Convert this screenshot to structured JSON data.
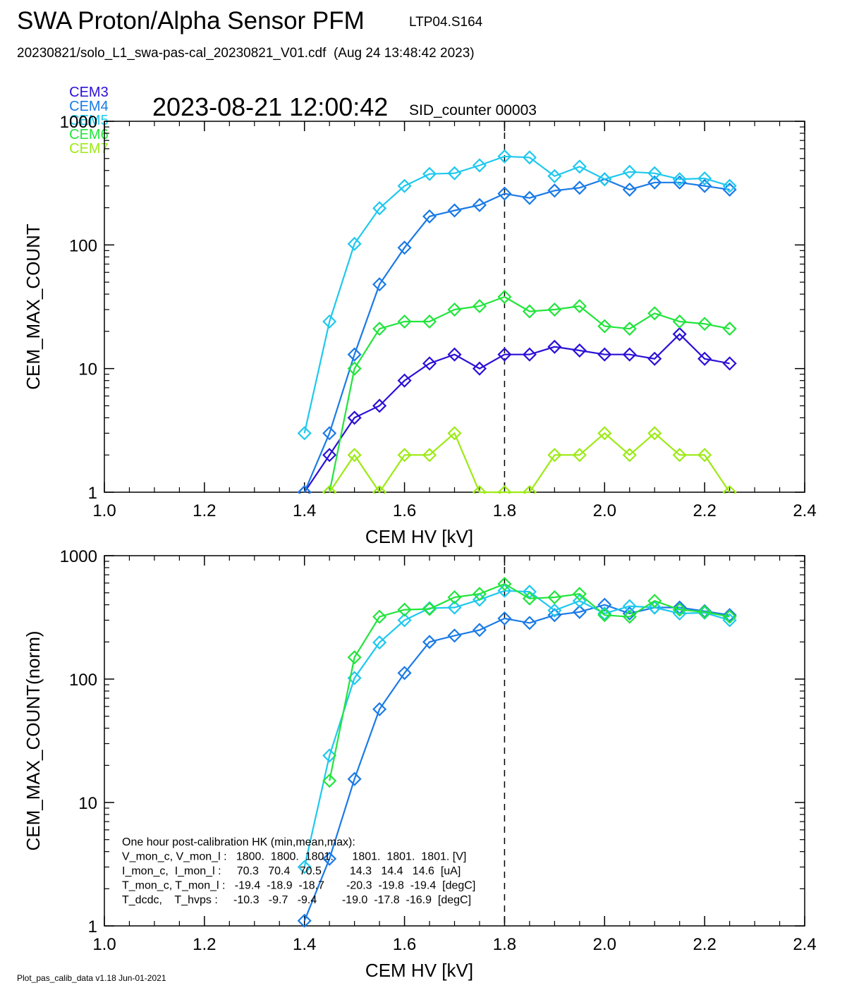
{
  "header": {
    "title": "SWA Proton/Alpha Sensor PFM",
    "tag": "LTP04.S164",
    "subtitle": "20230821/solo_L1_swa-pas-cal_20230821_V01.cdf  (Aug 24 13:48:42 2023)",
    "timestamp": "2023-08-21 12:00:42",
    "sid": "SID_counter 00003"
  },
  "legend": [
    {
      "label": "CEM3",
      "color": "#2a10d6"
    },
    {
      "label": "CEM4",
      "color": "#1a7ae6"
    },
    {
      "label": "CEM5",
      "color": "#1ec8ee"
    },
    {
      "label": "CEM6",
      "color": "#22e43c"
    },
    {
      "label": "CEM7",
      "color": "#9cea14"
    }
  ],
  "footer": "Plot_pas_calib_data v1.18 Jun-01-2021",
  "chart_data": [
    {
      "type": "line",
      "xlabel": "CEM HV [kV]",
      "ylabel": "CEM_MAX_COUNT",
      "xlim": [
        1.0,
        2.4
      ],
      "ylim": [
        1,
        1000
      ],
      "yscale": "log",
      "xticks": [
        "1.0",
        "1.2",
        "1.4",
        "1.6",
        "1.8",
        "2.0",
        "2.2",
        "2.4"
      ],
      "yticks": [
        "1",
        "10",
        "100",
        "1000"
      ],
      "vline_x": 1.8,
      "x": [
        1.4,
        1.45,
        1.5,
        1.55,
        1.6,
        1.65,
        1.7,
        1.75,
        1.8,
        1.85,
        1.9,
        1.95,
        2.0,
        2.05,
        2.1,
        2.15,
        2.2,
        2.25
      ],
      "series": [
        {
          "name": "CEM3",
          "color": "#2a10d6",
          "values": [
            1,
            2,
            4,
            5,
            8,
            11,
            13,
            10,
            13,
            13,
            15,
            14,
            13,
            13,
            12,
            19,
            12,
            11
          ]
        },
        {
          "name": "CEM4",
          "color": "#1a7ae6",
          "values": [
            1,
            3,
            13,
            48,
            95,
            170,
            190,
            210,
            260,
            240,
            275,
            290,
            340,
            280,
            320,
            320,
            300,
            280
          ]
        },
        {
          "name": "CEM5",
          "color": "#1ec8ee",
          "values": [
            3,
            24,
            102,
            198,
            300,
            375,
            380,
            440,
            520,
            510,
            360,
            430,
            340,
            390,
            380,
            340,
            345,
            300
          ]
        },
        {
          "name": "CEM6",
          "color": "#22e43c",
          "values": [
            null,
            1,
            10,
            21,
            24,
            24,
            30,
            32,
            38,
            29,
            30,
            32,
            22,
            21,
            28,
            24,
            23,
            21
          ]
        },
        {
          "name": "CEM7",
          "color": "#9cea14",
          "values": [
            null,
            1,
            2,
            1,
            2,
            2,
            3,
            1,
            1,
            1,
            2,
            2,
            3,
            2,
            3,
            2,
            2,
            1
          ]
        }
      ]
    },
    {
      "type": "line",
      "xlabel": "CEM HV [kV]",
      "ylabel": "CEM_MAX_COUNT(norm)",
      "xlim": [
        1.0,
        2.4
      ],
      "ylim": [
        1,
        1000
      ],
      "yscale": "log",
      "xticks": [
        "1.0",
        "1.2",
        "1.4",
        "1.6",
        "1.8",
        "2.0",
        "2.2",
        "2.4"
      ],
      "yticks": [
        "1",
        "10",
        "100",
        "1000"
      ],
      "vline_x": 1.8,
      "x": [
        1.4,
        1.45,
        1.5,
        1.55,
        1.6,
        1.65,
        1.7,
        1.75,
        1.8,
        1.85,
        1.9,
        1.95,
        2.0,
        2.05,
        2.1,
        2.15,
        2.2,
        2.25
      ],
      "series": [
        {
          "name": "CEM4",
          "color": "#1a7ae6",
          "values": [
            1.1,
            3.5,
            15.5,
            57,
            112,
            200,
            225,
            250,
            310,
            285,
            330,
            350,
            400,
            340,
            380,
            380,
            355,
            330
          ]
        },
        {
          "name": "CEM5",
          "color": "#1ec8ee",
          "values": [
            3,
            24,
            102,
            198,
            300,
            375,
            380,
            440,
            520,
            510,
            360,
            430,
            340,
            390,
            380,
            340,
            345,
            300
          ]
        },
        {
          "name": "CEM6",
          "color": "#22e43c",
          "values": [
            null,
            15,
            150,
            320,
            365,
            370,
            460,
            490,
            590,
            450,
            460,
            490,
            330,
            320,
            430,
            365,
            350,
            320
          ]
        }
      ],
      "hk_text": [
        "One hour post-calibration HK (min,mean,max):",
        "V_mon_c, V_mon_l :   1800.  1800.  1801.      1801.  1801.  1801. [V]",
        "I_mon_c,  I_mon_l :     70.3   70.4   70.5         14.3   14.4   14.6  [uA]",
        "T_mon_c, T_mon_l :   -19.4  -18.9  -18.7       -20.3  -19.8  -19.4  [degC]",
        "T_dcdc,    T_hvps :     -10.3   -9.7   -9.4        -19.0  -17.8  -16.9  [degC]"
      ]
    }
  ]
}
